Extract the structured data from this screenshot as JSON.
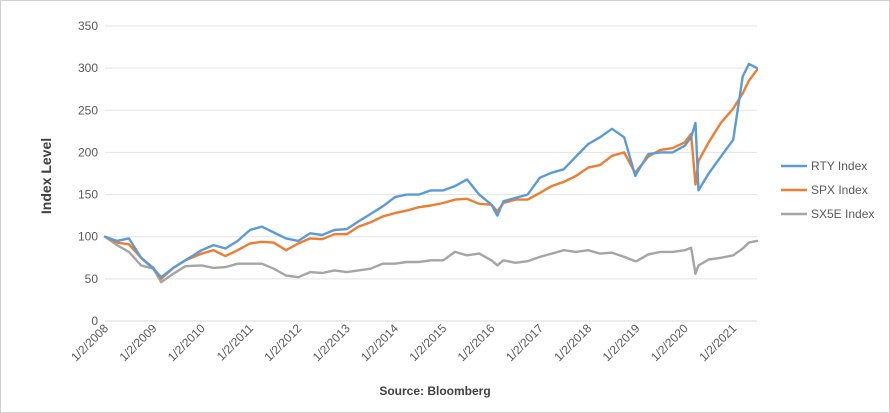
{
  "chart_data": {
    "type": "line",
    "title": "",
    "ylabel": "Index Level",
    "xlabel": "Source: Bloomberg",
    "ylim": [
      0,
      350
    ],
    "yticks": [
      0,
      50,
      100,
      150,
      200,
      250,
      300,
      350
    ],
    "grid": true,
    "legend_position": "right",
    "xticks": [
      "1/2/2008",
      "1/2/2009",
      "1/2/2010",
      "1/2/2011",
      "1/2/2012",
      "1/2/2013",
      "1/2/2014",
      "1/2/2015",
      "1/2/2016",
      "1/2/2017",
      "1/2/2018",
      "1/2/2019",
      "1/2/2020",
      "1/2/2021"
    ],
    "x": [
      "2008-01-02",
      "2008-04-01",
      "2008-07-01",
      "2008-10-01",
      "2009-01-02",
      "2009-03-01",
      "2009-06-01",
      "2009-09-01",
      "2010-01-02",
      "2010-04-01",
      "2010-07-01",
      "2010-10-01",
      "2011-01-02",
      "2011-04-01",
      "2011-07-01",
      "2011-10-01",
      "2012-01-02",
      "2012-04-01",
      "2012-07-01",
      "2012-10-01",
      "2013-01-02",
      "2013-04-01",
      "2013-07-01",
      "2013-10-01",
      "2014-01-02",
      "2014-04-01",
      "2014-07-01",
      "2014-10-01",
      "2015-01-02",
      "2015-04-01",
      "2015-07-01",
      "2015-10-01",
      "2016-01-02",
      "2016-02-15",
      "2016-04-01",
      "2016-07-01",
      "2016-10-01",
      "2017-01-02",
      "2017-04-01",
      "2017-07-01",
      "2017-10-01",
      "2018-01-02",
      "2018-04-01",
      "2018-07-01",
      "2018-10-01",
      "2018-12-24",
      "2019-01-02",
      "2019-04-01",
      "2019-07-01",
      "2019-10-01",
      "2020-01-02",
      "2020-02-19",
      "2020-03-23",
      "2020-04-15",
      "2020-07-01",
      "2020-10-01",
      "2021-01-02",
      "2021-03-15",
      "2021-05-01",
      "2021-07-01"
    ],
    "series": [
      {
        "name": "RTY Index",
        "color": "#5B9BD5",
        "values": [
          100,
          95,
          98,
          75,
          62,
          52,
          63,
          72,
          84,
          90,
          86,
          95,
          108,
          112,
          105,
          98,
          95,
          104,
          102,
          108,
          109,
          118,
          127,
          136,
          147,
          150,
          150,
          155,
          155,
          160,
          168,
          150,
          138,
          125,
          142,
          146,
          150,
          170,
          176,
          180,
          195,
          210,
          218,
          228,
          218,
          172,
          175,
          198,
          200,
          200,
          208,
          218,
          235,
          155,
          175,
          195,
          215,
          290,
          305,
          300
        ],
        "color_name": "blue"
      },
      {
        "name": "SPX Index",
        "color": "#ED7D31",
        "values": [
          100,
          93,
          91,
          75,
          63,
          50,
          63,
          72,
          80,
          84,
          77,
          84,
          92,
          94,
          93,
          84,
          92,
          98,
          97,
          103,
          103,
          112,
          117,
          124,
          128,
          131,
          135,
          137,
          140,
          144,
          145,
          139,
          138,
          130,
          140,
          144,
          144,
          152,
          160,
          165,
          172,
          182,
          185,
          196,
          200,
          175,
          178,
          195,
          203,
          205,
          212,
          222,
          162,
          190,
          212,
          235,
          252,
          270,
          285,
          298
        ],
        "color_name": "orange"
      },
      {
        "name": "SX5E Index",
        "color": "#A5A5A5",
        "values": [
          100,
          90,
          82,
          66,
          62,
          46,
          56,
          65,
          66,
          63,
          64,
          68,
          68,
          68,
          62,
          54,
          52,
          58,
          57,
          60,
          58,
          60,
          62,
          68,
          68,
          70,
          70,
          72,
          72,
          82,
          78,
          80,
          72,
          66,
          72,
          69,
          71,
          76,
          80,
          84,
          82,
          84,
          80,
          81,
          76,
          71,
          71,
          79,
          82,
          82,
          84,
          87,
          56,
          66,
          73,
          75,
          78,
          86,
          93,
          95
        ],
        "color_name": "gray"
      }
    ]
  }
}
